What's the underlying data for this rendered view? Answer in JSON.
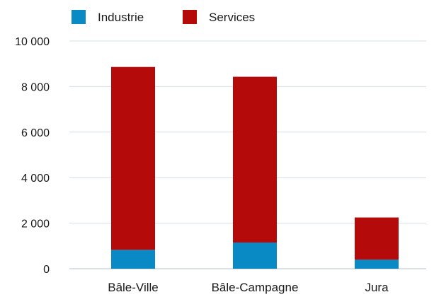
{
  "chart_data": {
    "type": "bar",
    "stacked": true,
    "categories": [
      "Bâle-Ville",
      "Bâle-Campagne",
      "Jura"
    ],
    "series": [
      {
        "name": "Industrie",
        "color": "#0a8ac4",
        "values": [
          830,
          1150,
          400
        ]
      },
      {
        "name": "Services",
        "color": "#b50a0a",
        "values": [
          8030,
          7280,
          1850
        ]
      }
    ],
    "yticks": [
      {
        "value": 0,
        "label": "0"
      },
      {
        "value": 2000,
        "label": "2 000"
      },
      {
        "value": 4000,
        "label": "4 000"
      },
      {
        "value": 6000,
        "label": "6 000"
      },
      {
        "value": 8000,
        "label": "8 000"
      },
      {
        "value": 10000,
        "label": "10 000"
      }
    ],
    "ylim": [
      0,
      10000
    ],
    "grid": true,
    "legend_position": "top-left",
    "title": "",
    "xlabel": "",
    "ylabel": ""
  }
}
